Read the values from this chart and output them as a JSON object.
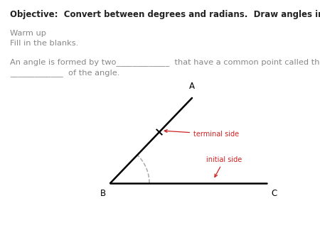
{
  "objective_text": "Objective:  Convert between degrees and radians.  Draw angles in standard form.",
  "warmup_text": "Warm up",
  "fillin_text": "Fill in the blanks.",
  "angle_text_line1": "An angle is formed by two_____________  that have a common point called the",
  "angle_text_line2": "_____________  of the angle.",
  "objective_color": "#222222",
  "gray_color": "#888888",
  "red_color": "#cc2222",
  "black_color": "#000000",
  "bg_color": "#ffffff",
  "figsize": [
    4.5,
    3.38
  ],
  "dpi": 100,
  "vertex_label_B": "B",
  "vertex_label_A": "A",
  "vertex_label_C": "C",
  "terminal_label": "terminal side",
  "initial_label": "initial side"
}
